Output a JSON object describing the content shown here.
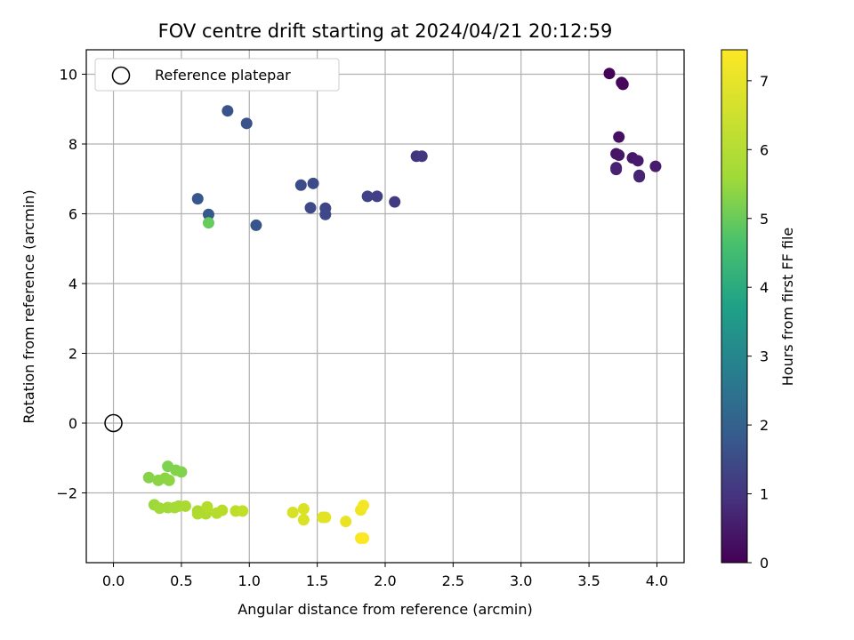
{
  "chart_data": {
    "type": "scatter",
    "title": "FOV centre drift starting at 2024/04/21 20:12:59",
    "xlabel": "Angular distance from reference (arcmin)",
    "ylabel": "Rotation from reference (arcmin)",
    "xlim": [
      -0.2,
      4.2
    ],
    "ylim": [
      -4.0,
      10.7
    ],
    "xticks": [
      "0.0",
      "0.5",
      "1.0",
      "1.5",
      "2.0",
      "2.5",
      "3.0",
      "3.5",
      "4.0"
    ],
    "yticks": [
      "−2",
      "0",
      "2",
      "4",
      "6",
      "8",
      "10"
    ],
    "grid": true,
    "legend": {
      "placement": "upper-left",
      "entries": [
        {
          "label": "Reference platepar",
          "marker": "open-circle"
        }
      ]
    },
    "reference_point": {
      "x": 0.0,
      "y": 0.0
    },
    "colorbar": {
      "label": "Hours from first FF file",
      "colormap": "viridis",
      "range": [
        0,
        7.45
      ],
      "ticks": [
        "0",
        "1",
        "2",
        "3",
        "4",
        "5",
        "6",
        "7"
      ]
    },
    "points": [
      {
        "x": 3.65,
        "y": 10.02,
        "c": 0.05
      },
      {
        "x": 3.74,
        "y": 9.76,
        "c": 0.1
      },
      {
        "x": 3.75,
        "y": 9.71,
        "c": 0.15
      },
      {
        "x": 3.72,
        "y": 8.2,
        "c": 0.3
      },
      {
        "x": 3.7,
        "y": 7.72,
        "c": 0.4
      },
      {
        "x": 3.72,
        "y": 7.68,
        "c": 0.45
      },
      {
        "x": 3.82,
        "y": 7.6,
        "c": 0.5
      },
      {
        "x": 3.86,
        "y": 7.52,
        "c": 0.55
      },
      {
        "x": 3.99,
        "y": 7.36,
        "c": 0.6
      },
      {
        "x": 3.7,
        "y": 7.32,
        "c": 0.65
      },
      {
        "x": 3.7,
        "y": 7.27,
        "c": 0.7
      },
      {
        "x": 3.87,
        "y": 7.1,
        "c": 0.75
      },
      {
        "x": 3.87,
        "y": 7.06,
        "c": 0.8
      },
      {
        "x": 2.23,
        "y": 7.65,
        "c": 1.15
      },
      {
        "x": 2.27,
        "y": 7.65,
        "c": 1.2
      },
      {
        "x": 2.07,
        "y": 6.34,
        "c": 1.3
      },
      {
        "x": 1.94,
        "y": 6.5,
        "c": 1.4
      },
      {
        "x": 1.87,
        "y": 6.5,
        "c": 1.45
      },
      {
        "x": 1.56,
        "y": 6.16,
        "c": 1.55
      },
      {
        "x": 1.56,
        "y": 5.98,
        "c": 1.6
      },
      {
        "x": 1.45,
        "y": 6.17,
        "c": 1.65
      },
      {
        "x": 1.47,
        "y": 6.87,
        "c": 1.7
      },
      {
        "x": 1.38,
        "y": 6.82,
        "c": 1.75
      },
      {
        "x": 0.98,
        "y": 8.59,
        "c": 1.9
      },
      {
        "x": 0.84,
        "y": 8.95,
        "c": 1.95
      },
      {
        "x": 1.05,
        "y": 5.67,
        "c": 2.0
      },
      {
        "x": 0.62,
        "y": 6.43,
        "c": 2.05
      },
      {
        "x": 0.7,
        "y": 5.98,
        "c": 2.1
      },
      {
        "x": 0.7,
        "y": 5.74,
        "c": 5.7
      },
      {
        "x": 0.4,
        "y": -1.24,
        "c": 6.0
      },
      {
        "x": 0.46,
        "y": -1.35,
        "c": 6.05
      },
      {
        "x": 0.5,
        "y": -1.4,
        "c": 6.05
      },
      {
        "x": 0.26,
        "y": -1.56,
        "c": 6.1
      },
      {
        "x": 0.33,
        "y": -1.64,
        "c": 6.15
      },
      {
        "x": 0.38,
        "y": -1.58,
        "c": 6.15
      },
      {
        "x": 0.41,
        "y": -1.64,
        "c": 6.2
      },
      {
        "x": 0.3,
        "y": -2.34,
        "c": 6.35
      },
      {
        "x": 0.34,
        "y": -2.44,
        "c": 6.4
      },
      {
        "x": 0.4,
        "y": -2.42,
        "c": 6.4
      },
      {
        "x": 0.45,
        "y": -2.42,
        "c": 6.45
      },
      {
        "x": 0.48,
        "y": -2.38,
        "c": 6.45
      },
      {
        "x": 0.53,
        "y": -2.38,
        "c": 6.5
      },
      {
        "x": 0.62,
        "y": -2.52,
        "c": 6.5
      },
      {
        "x": 0.62,
        "y": -2.6,
        "c": 6.55
      },
      {
        "x": 0.68,
        "y": -2.6,
        "c": 6.55
      },
      {
        "x": 0.69,
        "y": -2.4,
        "c": 6.6
      },
      {
        "x": 0.76,
        "y": -2.58,
        "c": 6.6
      },
      {
        "x": 0.8,
        "y": -2.5,
        "c": 6.65
      },
      {
        "x": 0.9,
        "y": -2.52,
        "c": 6.7
      },
      {
        "x": 0.95,
        "y": -2.52,
        "c": 6.75
      },
      {
        "x": 1.32,
        "y": -2.56,
        "c": 7.0
      },
      {
        "x": 1.4,
        "y": -2.46,
        "c": 7.05
      },
      {
        "x": 1.4,
        "y": -2.77,
        "c": 7.05
      },
      {
        "x": 1.54,
        "y": -2.7,
        "c": 7.1
      },
      {
        "x": 1.56,
        "y": -2.7,
        "c": 7.15
      },
      {
        "x": 1.71,
        "y": -2.82,
        "c": 7.2
      },
      {
        "x": 1.82,
        "y": -2.49,
        "c": 7.3
      },
      {
        "x": 1.84,
        "y": -2.36,
        "c": 7.35
      },
      {
        "x": 1.82,
        "y": -3.3,
        "c": 7.4
      },
      {
        "x": 1.84,
        "y": -3.3,
        "c": 7.45
      }
    ]
  }
}
